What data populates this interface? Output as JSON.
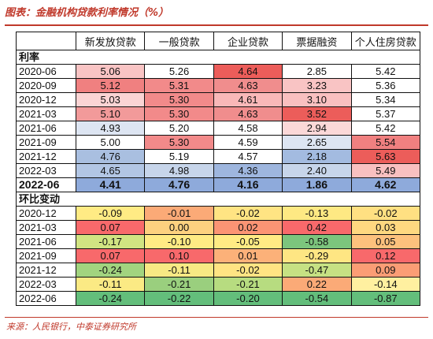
{
  "title": "图表：金融机构贷款利率情况（%）",
  "source": "来源：人民银行，中泰证券研究所",
  "columns": [
    "",
    "新发放贷款",
    "一般贷款",
    "企业贷款",
    "票据融资",
    "个人住房贷款"
  ],
  "section_rate_label": "利率",
  "section_change_label": "环比变动",
  "rate_rows": [
    {
      "date": "2020-06",
      "values": [
        "5.06",
        "5.26",
        "4.64",
        "2.85",
        "5.42"
      ],
      "colors": [
        "#f9c4c4",
        "#ffffff",
        "#ec5d5a",
        "#ffffff",
        "#ffffff"
      ]
    },
    {
      "date": "2020-09",
      "values": [
        "5.12",
        "5.31",
        "4.63",
        "3.23",
        "5.36"
      ],
      "colors": [
        "#f08080",
        "#f28a8a",
        "#f08d8d",
        "#f9c4c4",
        "#ffffff"
      ]
    },
    {
      "date": "2020-12",
      "values": [
        "5.03",
        "5.30",
        "4.61",
        "3.10",
        "5.34"
      ],
      "colors": [
        "#fbd4d4",
        "#f28a8a",
        "#f9b8b8",
        "#f9c0c0",
        "#ffffff"
      ]
    },
    {
      "date": "2021-03",
      "values": [
        "5.10",
        "5.30",
        "4.63",
        "3.52",
        "5.37"
      ],
      "colors": [
        "#f29a9a",
        "#f28a8a",
        "#f08d8d",
        "#ec5d5a",
        "#ffffff"
      ]
    },
    {
      "date": "2021-06",
      "values": [
        "4.93",
        "5.20",
        "4.58",
        "2.94",
        "5.42"
      ],
      "colors": [
        "#dde5f2",
        "#ffffff",
        "#ffffff",
        "#fbd8d8",
        "#ffffff"
      ]
    },
    {
      "date": "2021-09",
      "values": [
        "5.00",
        "5.30",
        "4.59",
        "2.65",
        "5.54"
      ],
      "colors": [
        "#ffffff",
        "#f28a8a",
        "#ffffff",
        "#dde5f2",
        "#f08080"
      ]
    },
    {
      "date": "2021-12",
      "values": [
        "4.76",
        "5.19",
        "4.57",
        "2.18",
        "5.63"
      ],
      "colors": [
        "#a9bfe0",
        "#ffffff",
        "#ffffff",
        "#a3bbe0",
        "#ec5d5a"
      ]
    },
    {
      "date": "2022-03",
      "values": [
        "4.65",
        "4.98",
        "4.36",
        "2.40",
        "5.49"
      ],
      "colors": [
        "#b2c6e4",
        "#c7d5ea",
        "#9eb6de",
        "#c7d5ea",
        "#f9c0c0"
      ]
    },
    {
      "date": "2022-06",
      "values": [
        "4.41",
        "4.76",
        "4.16",
        "1.86",
        "4.62"
      ],
      "colors": [
        "#8eaadb",
        "#8eaadb",
        "#8eaadb",
        "#8eaadb",
        "#8eaadb"
      ]
    }
  ],
  "change_rows": [
    {
      "date": "2020-12",
      "values": [
        "-0.09",
        "-0.01",
        "-0.02",
        "-0.13",
        "-0.02"
      ],
      "colors": [
        "#ffeb84",
        "#fbaa77",
        "#ffe483",
        "#fee983",
        "#ffe082"
      ]
    },
    {
      "date": "2021-03",
      "values": [
        "0.07",
        "0.00",
        "0.02",
        "0.42",
        "0.03"
      ],
      "colors": [
        "#f8696b",
        "#fdd17f",
        "#fb9474",
        "#f8696b",
        "#fed880"
      ]
    },
    {
      "date": "2021-06",
      "values": [
        "-0.17",
        "-0.10",
        "-0.05",
        "-0.58",
        "0.05"
      ],
      "colors": [
        "#d1e482",
        "#ffeb84",
        "#ffeb84",
        "#7cc57d",
        "#fdc17d"
      ]
    },
    {
      "date": "2021-09",
      "values": [
        "0.07",
        "0.10",
        "0.01",
        "-0.29",
        "0.12"
      ],
      "colors": [
        "#f8696b",
        "#f8696b",
        "#fcb179",
        "#fee683",
        "#f8696b"
      ]
    },
    {
      "date": "2021-12",
      "values": [
        "-0.24",
        "-0.11",
        "-0.02",
        "-0.47",
        "0.09"
      ],
      "colors": [
        "#a2d47f",
        "#f7e984",
        "#ffe483",
        "#c6e183",
        "#fb9d75"
      ]
    },
    {
      "date": "2022-03",
      "values": [
        "-0.11",
        "-0.21",
        "-0.21",
        "0.22",
        "-0.14"
      ],
      "colors": [
        "#fbea84",
        "#9acf7e",
        "#b7dc80",
        "#fbaa77",
        "#fff0a0"
      ]
    },
    {
      "date": "2022-06",
      "values": [
        "-0.24",
        "-0.22",
        "-0.20",
        "-0.54",
        "-0.87"
      ],
      "colors": [
        "#63be7b",
        "#63be7b",
        "#63be7b",
        "#63be7b",
        "#63be7b"
      ]
    }
  ]
}
